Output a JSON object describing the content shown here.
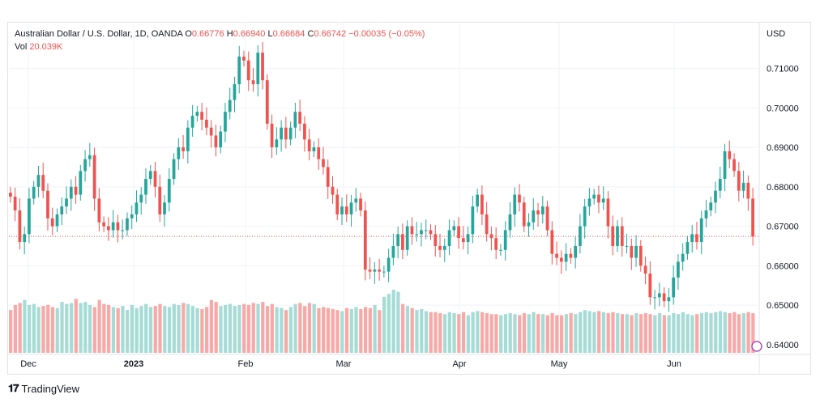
{
  "legend": {
    "symbol": "Australian Dollar / U.S. Dollar, 1D, OANDA",
    "o_label": "O",
    "o_value": "0.66776",
    "h_label": "H",
    "h_value": "0.66940",
    "l_label": "L",
    "l_value": "0.66684",
    "c_label": "C",
    "c_value": "0.66742",
    "change": "−0.00035 (−0.05%)",
    "vol_label": "Vol",
    "vol_value": "20.039K"
  },
  "currency": "USD",
  "footer": {
    "brand": "TradingView"
  },
  "colors": {
    "up": "#26a69a",
    "down": "#ef5350",
    "up_vol": "#a7dbd6",
    "down_vol": "#f7a9a7",
    "grid": "#f0f3fa",
    "last_price_line": "#ef5350"
  },
  "chart_data": {
    "type": "candlestick",
    "x_tick_labels": [
      "Dec",
      "2023",
      "Feb",
      "Mar",
      "Apr",
      "May",
      "Jun"
    ],
    "y_tick_labels": [
      "0.71000",
      "0.70000",
      "0.69000",
      "0.68000",
      "0.67000",
      "0.66000",
      "0.65000",
      "0.64000"
    ],
    "ylim": [
      0.6375,
      0.7175
    ],
    "last_close": 0.66742,
    "grid": true,
    "close": [
      0.6775,
      0.674,
      0.666,
      0.668,
      0.677,
      0.68,
      0.683,
      0.679,
      0.672,
      0.67,
      0.673,
      0.675,
      0.677,
      0.68,
      0.678,
      0.684,
      0.687,
      0.688,
      0.677,
      0.671,
      0.67,
      0.669,
      0.671,
      0.669,
      0.669,
      0.672,
      0.673,
      0.676,
      0.678,
      0.682,
      0.684,
      0.68,
      0.673,
      0.676,
      0.682,
      0.687,
      0.69,
      0.689,
      0.695,
      0.698,
      0.699,
      0.697,
      0.695,
      0.693,
      0.69,
      0.694,
      0.699,
      0.702,
      0.706,
      0.713,
      0.712,
      0.707,
      0.706,
      0.714,
      0.707,
      0.696,
      0.69,
      0.692,
      0.695,
      0.692,
      0.695,
      0.699,
      0.696,
      0.692,
      0.689,
      0.69,
      0.687,
      0.685,
      0.68,
      0.678,
      0.673,
      0.675,
      0.673,
      0.676,
      0.677,
      0.674,
      0.659,
      0.6585,
      0.659,
      0.6585,
      0.6585,
      0.662,
      0.665,
      0.668,
      0.664,
      0.67,
      0.668,
      0.668,
      0.669,
      0.669,
      0.668,
      0.665,
      0.664,
      0.665,
      0.669,
      0.67,
      0.667,
      0.666,
      0.668,
      0.675,
      0.678,
      0.673,
      0.668,
      0.667,
      0.664,
      0.664,
      0.669,
      0.673,
      0.678,
      0.676,
      0.67,
      0.671,
      0.674,
      0.673,
      0.675,
      0.669,
      0.663,
      0.662,
      0.661,
      0.663,
      0.662,
      0.665,
      0.67,
      0.675,
      0.677,
      0.678,
      0.676,
      0.677,
      0.67,
      0.665,
      0.67,
      0.665,
      0.665,
      0.662,
      0.665,
      0.66,
      0.658,
      0.652,
      0.652,
      0.653,
      0.651,
      0.652,
      0.657,
      0.661,
      0.663,
      0.666,
      0.668,
      0.666,
      0.672,
      0.674,
      0.676,
      0.679,
      0.682,
      0.689,
      0.687,
      0.684,
      0.679,
      0.681,
      0.677,
      0.6674
    ],
    "volume": [
      42,
      47,
      49,
      52,
      47,
      48,
      45,
      46,
      47,
      45,
      44,
      50,
      48,
      49,
      53,
      49,
      50,
      47,
      45,
      52,
      48,
      47,
      45,
      44,
      46,
      42,
      47,
      44,
      46,
      48,
      45,
      46,
      48,
      46,
      45,
      48,
      47,
      49,
      48,
      46,
      44,
      43,
      45,
      52,
      50,
      46,
      47,
      48,
      46,
      47,
      48,
      47,
      49,
      48,
      50,
      46,
      48,
      45,
      44,
      42,
      45,
      48,
      49,
      46,
      49,
      48,
      44,
      45,
      44,
      43,
      42,
      41,
      44,
      43,
      45,
      43,
      45,
      44,
      47,
      42,
      55,
      58,
      62,
      60,
      48,
      46,
      44,
      42,
      43,
      41,
      40,
      40,
      39,
      38,
      40,
      39,
      38,
      40,
      37,
      40,
      41,
      40,
      39,
      38,
      38,
      37,
      38,
      39,
      38,
      37,
      39,
      38,
      40,
      38,
      38,
      37,
      39,
      37,
      37,
      38,
      39,
      38,
      40,
      42,
      41,
      40,
      41,
      40,
      39,
      40,
      39,
      38,
      38,
      37,
      39,
      38,
      39,
      38,
      37,
      39,
      37,
      37,
      39,
      38,
      40,
      38,
      37,
      38,
      39,
      40,
      39,
      40,
      41,
      40,
      39,
      40,
      38,
      39,
      40,
      39
    ]
  }
}
